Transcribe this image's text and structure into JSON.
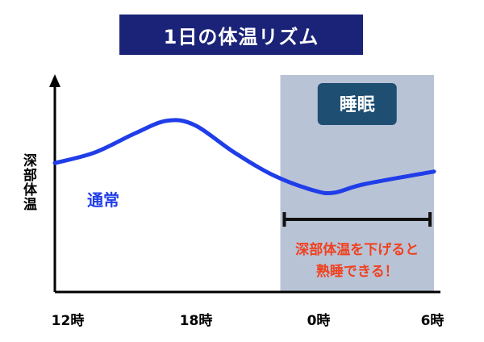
{
  "chart_data": {
    "type": "line",
    "title": "1日の体温リズム",
    "ylabel": "深部体温",
    "xlabel": "",
    "x_ticks": [
      "12時",
      "18時",
      "0時",
      "6時"
    ],
    "xlim": [
      12,
      31
    ],
    "ylim": [
      0,
      100
    ],
    "series": [
      {
        "name": "通常",
        "x": [
          12,
          14,
          16,
          17.6,
          19,
          21,
          23,
          25,
          26,
          27.5,
          31
        ],
        "y": [
          61,
          66,
          75,
          81,
          79,
          66,
          55,
          48,
          47,
          51,
          57
        ]
      }
    ],
    "shaded_region": {
      "label": "睡眠",
      "from": 23.3,
      "to": 31
    },
    "annotation": {
      "range_from": 23.5,
      "range_to": 30.8,
      "text_line1": "深部体温を下げると",
      "text_line2": "熟睡できる！"
    }
  },
  "colors": {
    "title_bg": "#1a2377",
    "shade": "#b9c3d6",
    "sleep_label_bg": "#1f4e73",
    "line": "#1f3de8",
    "annotation_text": "#f0411f",
    "axis": "#000000"
  }
}
